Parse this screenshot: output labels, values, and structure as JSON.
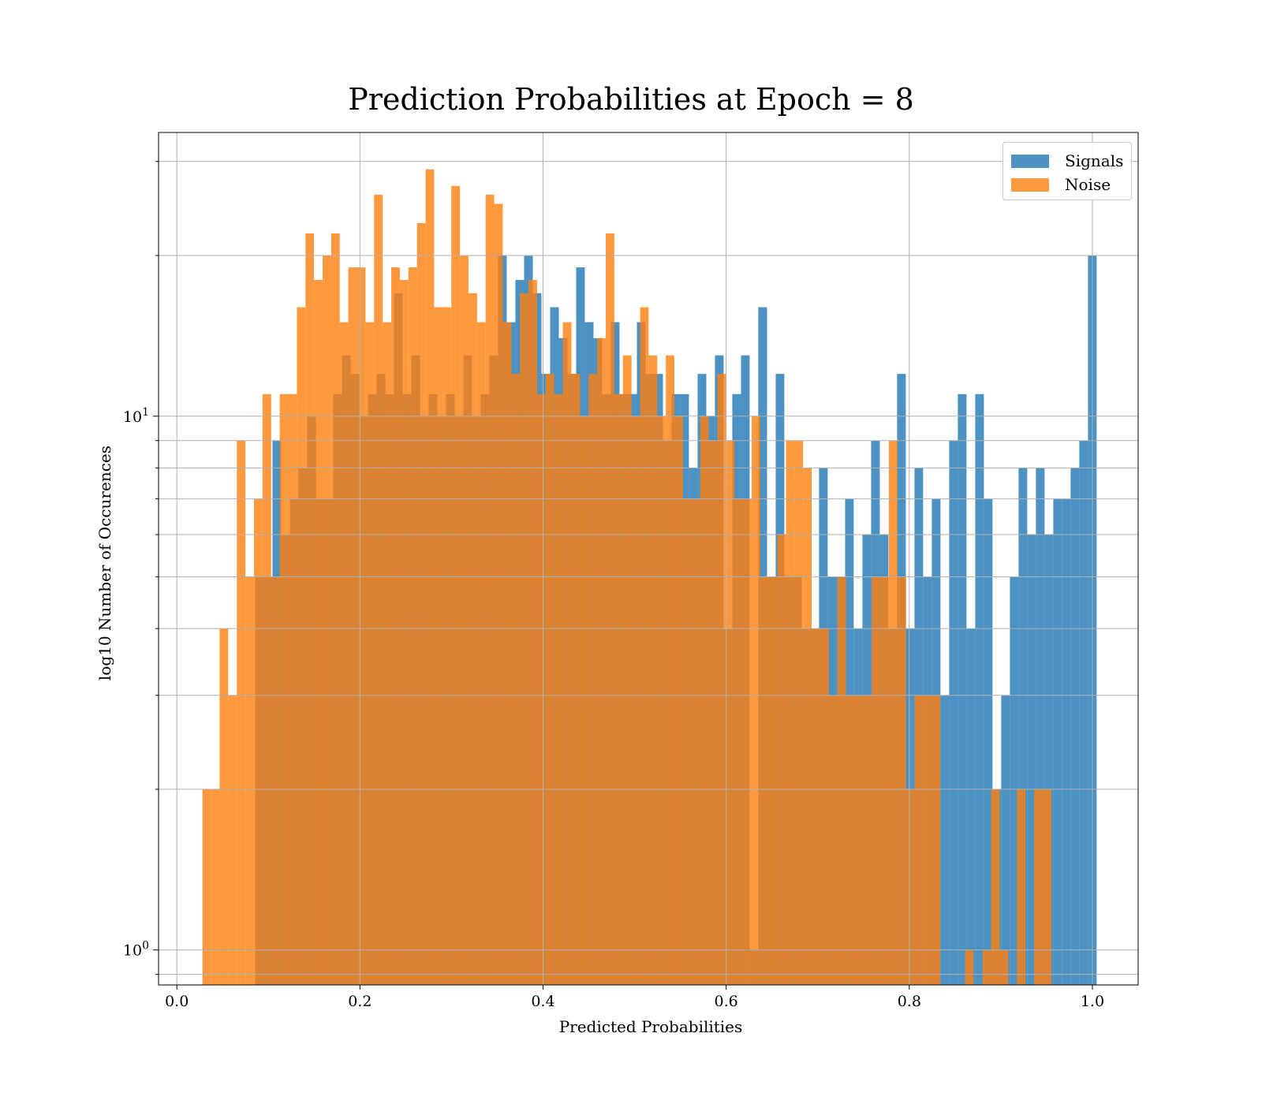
{
  "chart_data": {
    "type": "bar",
    "title": "Prediction Probabilities at Epoch = 8",
    "xlabel": "Predicted Probabilities",
    "ylabel": "log10 Number of Occurences",
    "x_tick_labels": [
      "0.0",
      "0.2",
      "0.4",
      "0.6",
      "0.8",
      "1.0"
    ],
    "x_ticks": [
      0,
      0.2,
      0.4,
      0.6,
      0.8,
      1.0
    ],
    "xlim": [
      -0.02,
      1.05
    ],
    "y_scale": "log",
    "y_tick_labels": [
      {
        "base": "10",
        "exp": "0",
        "value": 1
      },
      {
        "base": "10",
        "exp": "1",
        "value": 10
      }
    ],
    "y_minor_ticks": [
      0.9,
      2,
      3,
      4,
      5,
      6,
      7,
      8,
      9,
      20,
      30
    ],
    "ylim": [
      0.86,
      34
    ],
    "grid": true,
    "legend_position": "top-right",
    "series": [
      {
        "name": "Signals",
        "color": "#1f77b4",
        "opacity": 0.8,
        "bins": [
          [
            0.0856,
            0.095,
            5
          ],
          [
            0.095,
            0.1045,
            5
          ],
          [
            0.1045,
            0.114,
            9
          ],
          [
            0.114,
            0.1235,
            6
          ],
          [
            0.1235,
            0.1329,
            7
          ],
          [
            0.1329,
            0.1424,
            8
          ],
          [
            0.1424,
            0.1519,
            10
          ],
          [
            0.1519,
            0.1614,
            7
          ],
          [
            0.1614,
            0.1708,
            7
          ],
          [
            0.1708,
            0.1803,
            11
          ],
          [
            0.1803,
            0.1898,
            13
          ],
          [
            0.1898,
            0.1993,
            12
          ],
          [
            0.1993,
            0.2087,
            10
          ],
          [
            0.2087,
            0.2182,
            11
          ],
          [
            0.2182,
            0.2277,
            12
          ],
          [
            0.2277,
            0.2372,
            11
          ],
          [
            0.2372,
            0.2466,
            17
          ],
          [
            0.2466,
            0.2561,
            11
          ],
          [
            0.2561,
            0.2656,
            13
          ],
          [
            0.2656,
            0.2751,
            10
          ],
          [
            0.2751,
            0.2845,
            11
          ],
          [
            0.2845,
            0.294,
            10
          ],
          [
            0.294,
            0.3035,
            11
          ],
          [
            0.3035,
            0.313,
            10
          ],
          [
            0.313,
            0.3224,
            13
          ],
          [
            0.3224,
            0.3319,
            10
          ],
          [
            0.3319,
            0.3414,
            11
          ],
          [
            0.3414,
            0.3509,
            13
          ],
          [
            0.3509,
            0.3603,
            20
          ],
          [
            0.3603,
            0.3698,
            15
          ],
          [
            0.3698,
            0.3793,
            18
          ],
          [
            0.3793,
            0.3888,
            20
          ],
          [
            0.3888,
            0.3982,
            17
          ],
          [
            0.3982,
            0.4077,
            12
          ],
          [
            0.4077,
            0.4172,
            16
          ],
          [
            0.4172,
            0.4267,
            14
          ],
          [
            0.4267,
            0.4361,
            12
          ],
          [
            0.4361,
            0.4456,
            19
          ],
          [
            0.4456,
            0.4551,
            15
          ],
          [
            0.4551,
            0.4646,
            14
          ],
          [
            0.4646,
            0.474,
            11
          ],
          [
            0.474,
            0.4835,
            15
          ],
          [
            0.4835,
            0.493,
            11
          ],
          [
            0.493,
            0.5025,
            11
          ],
          [
            0.5025,
            0.5119,
            15
          ],
          [
            0.5119,
            0.5214,
            12
          ],
          [
            0.5214,
            0.5309,
            12
          ],
          [
            0.5309,
            0.5404,
            9
          ],
          [
            0.5404,
            0.5498,
            11
          ],
          [
            0.5498,
            0.5593,
            11
          ],
          [
            0.5593,
            0.5688,
            8
          ],
          [
            0.5688,
            0.5783,
            12
          ],
          [
            0.5783,
            0.5877,
            10
          ],
          [
            0.5877,
            0.5972,
            13
          ],
          [
            0.5972,
            0.6067,
            4
          ],
          [
            0.6067,
            0.6162,
            11
          ],
          [
            0.6162,
            0.6256,
            13
          ],
          [
            0.6256,
            0.6351,
            1
          ],
          [
            0.6351,
            0.6446,
            16
          ],
          [
            0.6446,
            0.6541,
            5
          ],
          [
            0.6541,
            0.6635,
            12
          ],
          [
            0.6635,
            0.673,
            5
          ],
          [
            0.673,
            0.6825,
            5
          ],
          [
            0.6825,
            0.692,
            4
          ],
          [
            0.692,
            0.7014,
            4
          ],
          [
            0.7014,
            0.7109,
            8
          ],
          [
            0.7109,
            0.7204,
            5
          ],
          [
            0.7204,
            0.7299,
            5
          ],
          [
            0.7299,
            0.7393,
            7
          ],
          [
            0.7393,
            0.7488,
            4
          ],
          [
            0.7488,
            0.7583,
            6
          ],
          [
            0.7583,
            0.7678,
            9
          ],
          [
            0.7678,
            0.7772,
            6
          ],
          [
            0.7772,
            0.7867,
            4
          ],
          [
            0.7867,
            0.7962,
            12
          ],
          [
            0.7962,
            0.8057,
            4
          ],
          [
            0.8057,
            0.8151,
            8
          ],
          [
            0.8151,
            0.8246,
            5
          ],
          [
            0.8246,
            0.8341,
            7
          ],
          [
            0.8341,
            0.8436,
            3
          ],
          [
            0.8436,
            0.853,
            9
          ],
          [
            0.853,
            0.8625,
            11
          ],
          [
            0.8625,
            0.872,
            4
          ],
          [
            0.872,
            0.8815,
            11
          ],
          [
            0.8815,
            0.8909,
            7
          ],
          [
            0.8909,
            0.9004,
            2
          ],
          [
            0.9004,
            0.9099,
            3
          ],
          [
            0.9099,
            0.9194,
            5
          ],
          [
            0.9194,
            0.9288,
            8
          ],
          [
            0.9288,
            0.9383,
            6
          ],
          [
            0.9383,
            0.9478,
            8
          ],
          [
            0.9478,
            0.9573,
            6
          ],
          [
            0.9573,
            0.9667,
            7
          ],
          [
            0.9667,
            0.9762,
            7
          ],
          [
            0.9762,
            0.9857,
            8
          ],
          [
            0.9857,
            0.9952,
            9
          ],
          [
            0.9952,
            1.0046,
            20
          ]
        ]
      },
      {
        "name": "Noise",
        "color": "#ff7f0e",
        "opacity": 0.8,
        "bins": [
          [
            0.028,
            0.0374,
            2
          ],
          [
            0.0374,
            0.0467,
            2
          ],
          [
            0.0467,
            0.0561,
            4
          ],
          [
            0.0561,
            0.0655,
            3
          ],
          [
            0.0655,
            0.0749,
            9
          ],
          [
            0.0749,
            0.0842,
            5
          ],
          [
            0.0842,
            0.0936,
            7
          ],
          [
            0.0936,
            0.103,
            11
          ],
          [
            0.103,
            0.1123,
            5
          ],
          [
            0.1123,
            0.1217,
            11
          ],
          [
            0.1217,
            0.1311,
            11
          ],
          [
            0.1311,
            0.1405,
            16
          ],
          [
            0.1405,
            0.1498,
            22
          ],
          [
            0.1498,
            0.1592,
            18
          ],
          [
            0.1592,
            0.1686,
            20
          ],
          [
            0.1686,
            0.1779,
            22
          ],
          [
            0.1779,
            0.1873,
            15
          ],
          [
            0.1873,
            0.1967,
            19
          ],
          [
            0.1967,
            0.2061,
            19
          ],
          [
            0.2061,
            0.2154,
            15
          ],
          [
            0.2154,
            0.2248,
            26
          ],
          [
            0.2248,
            0.2342,
            15
          ],
          [
            0.2342,
            0.2436,
            19
          ],
          [
            0.2436,
            0.2529,
            18
          ],
          [
            0.2529,
            0.2623,
            19
          ],
          [
            0.2623,
            0.2717,
            23
          ],
          [
            0.2717,
            0.281,
            29
          ],
          [
            0.281,
            0.2904,
            16
          ],
          [
            0.2904,
            0.2998,
            16
          ],
          [
            0.2998,
            0.3092,
            27
          ],
          [
            0.3092,
            0.3185,
            20
          ],
          [
            0.3185,
            0.3279,
            17
          ],
          [
            0.3279,
            0.3373,
            15
          ],
          [
            0.3373,
            0.3466,
            26
          ],
          [
            0.3466,
            0.356,
            25
          ],
          [
            0.356,
            0.3654,
            15
          ],
          [
            0.3654,
            0.3748,
            12
          ],
          [
            0.3748,
            0.3841,
            17
          ],
          [
            0.3841,
            0.3935,
            18
          ],
          [
            0.3935,
            0.4029,
            11
          ],
          [
            0.4029,
            0.4122,
            12
          ],
          [
            0.4122,
            0.4216,
            11
          ],
          [
            0.4216,
            0.431,
            15
          ],
          [
            0.431,
            0.4404,
            12
          ],
          [
            0.4404,
            0.4497,
            10
          ],
          [
            0.4497,
            0.4591,
            12
          ],
          [
            0.4591,
            0.4685,
            14
          ],
          [
            0.4685,
            0.4778,
            22
          ],
          [
            0.4778,
            0.4872,
            11
          ],
          [
            0.4872,
            0.4966,
            13
          ],
          [
            0.4966,
            0.506,
            10
          ],
          [
            0.506,
            0.5153,
            16
          ],
          [
            0.5153,
            0.5247,
            13
          ],
          [
            0.5247,
            0.5341,
            10
          ],
          [
            0.5341,
            0.5434,
            13
          ],
          [
            0.5434,
            0.5528,
            10
          ],
          [
            0.5528,
            0.5622,
            7
          ],
          [
            0.5622,
            0.5716,
            7
          ],
          [
            0.5716,
            0.5809,
            10
          ],
          [
            0.5809,
            0.5903,
            9
          ],
          [
            0.5903,
            0.5997,
            12
          ],
          [
            0.5997,
            0.6091,
            9
          ],
          [
            0.6091,
            0.6184,
            7
          ],
          [
            0.6184,
            0.6278,
            7
          ],
          [
            0.6278,
            0.6372,
            10
          ],
          [
            0.6372,
            0.6465,
            5
          ],
          [
            0.6465,
            0.6559,
            5
          ],
          [
            0.6559,
            0.6653,
            6
          ],
          [
            0.6653,
            0.6747,
            9
          ],
          [
            0.6747,
            0.684,
            9
          ],
          [
            0.684,
            0.6934,
            8
          ],
          [
            0.6934,
            0.7028,
            4
          ],
          [
            0.7028,
            0.7121,
            4
          ],
          [
            0.7121,
            0.7215,
            3
          ],
          [
            0.7215,
            0.7309,
            5
          ],
          [
            0.7309,
            0.7403,
            3
          ],
          [
            0.7403,
            0.7496,
            3
          ],
          [
            0.7496,
            0.759,
            3
          ],
          [
            0.759,
            0.7684,
            5
          ],
          [
            0.7684,
            0.7777,
            5
          ],
          [
            0.7777,
            0.7871,
            9
          ],
          [
            0.7871,
            0.7965,
            5
          ],
          [
            0.7965,
            0.8059,
            2
          ],
          [
            0.8059,
            0.8152,
            3
          ],
          [
            0.8152,
            0.8246,
            3
          ],
          [
            0.8246,
            0.834,
            3
          ],
          [
            0.8608,
            0.8702,
            1
          ],
          [
            0.88,
            0.8894,
            1
          ],
          [
            0.8894,
            0.8988,
            2
          ],
          [
            0.8988,
            0.9082,
            1
          ],
          [
            0.9176,
            0.927,
            2
          ],
          [
            0.9364,
            0.9458,
            2
          ],
          [
            0.9458,
            0.9552,
            2
          ]
        ]
      }
    ]
  }
}
